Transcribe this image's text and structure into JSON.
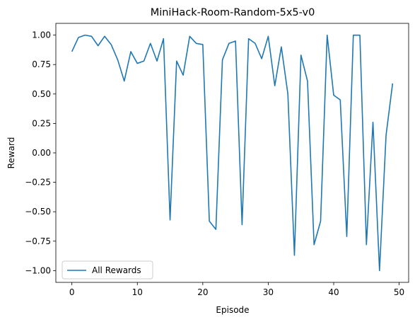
{
  "chart_data": {
    "type": "line",
    "title": "MiniHack-Room-Random-5x5-v0",
    "xlabel": "Episode",
    "ylabel": "Reward",
    "xlim": [
      -2.45,
      51.45
    ],
    "ylim": [
      -1.1,
      1.1
    ],
    "xticks": [
      0,
      10,
      20,
      30,
      40,
      50
    ],
    "yticks": [
      -1.0,
      -0.75,
      -0.5,
      -0.25,
      0.0,
      0.25,
      0.5,
      0.75,
      1.0
    ],
    "ytick_labels": [
      "−1.00",
      "−0.75",
      "−0.50",
      "−0.25",
      "0.00",
      "0.25",
      "0.50",
      "0.75",
      "1.00"
    ],
    "legend_position": "lower-left",
    "grid": false,
    "series": [
      {
        "name": "All Rewards",
        "color": "#1f77b4",
        "x": [
          0,
          1,
          2,
          3,
          4,
          5,
          6,
          7,
          8,
          9,
          10,
          11,
          12,
          13,
          14,
          15,
          16,
          17,
          18,
          19,
          20,
          21,
          22,
          23,
          24,
          25,
          26,
          27,
          28,
          29,
          30,
          31,
          32,
          33,
          34,
          35,
          36,
          37,
          38,
          39,
          40,
          41,
          42,
          43,
          44,
          45,
          46,
          47,
          48,
          49
        ],
        "values": [
          0.86,
          0.98,
          1.0,
          0.99,
          0.91,
          0.99,
          0.92,
          0.79,
          0.61,
          0.86,
          0.76,
          0.78,
          0.93,
          0.78,
          0.97,
          -0.57,
          0.78,
          0.66,
          0.99,
          0.93,
          0.92,
          -0.58,
          -0.65,
          0.79,
          0.93,
          0.95,
          -0.61,
          0.97,
          0.93,
          0.8,
          0.99,
          0.57,
          0.9,
          0.5,
          -0.87,
          0.83,
          0.61,
          -0.78,
          -0.58,
          1.0,
          0.49,
          0.45,
          -0.71,
          1.0,
          1.0,
          -0.78,
          0.26,
          -1.0,
          0.15,
          0.59
        ]
      }
    ]
  }
}
